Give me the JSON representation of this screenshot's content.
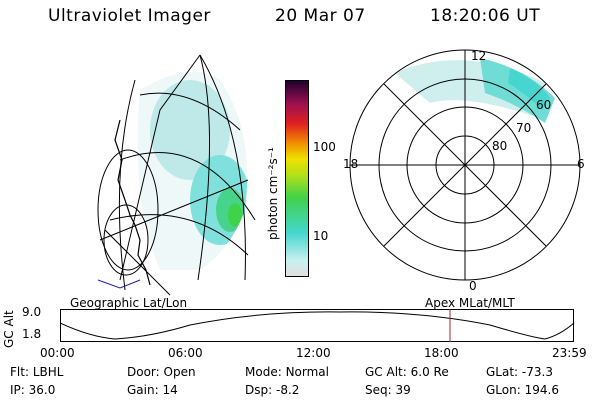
{
  "header": {
    "instrument": "Ultraviolet Imager",
    "date": "20 Mar 07",
    "time": "18:20:06 UT"
  },
  "colorbar": {
    "unit_label": "photon cm⁻²s⁻¹",
    "ticks": [
      "100",
      "10"
    ]
  },
  "polar": {
    "mlt_labels": {
      "top": "12",
      "left": "18",
      "right": "6",
      "bottom": "0"
    },
    "mlat_labels": [
      "60",
      "70",
      "80"
    ]
  },
  "map_labels": {
    "left": "Geographic Lat/Lon",
    "right": "Apex MLat/MLT"
  },
  "alt_plot": {
    "ylabel": "GC Alt",
    "y_max": "9.0",
    "y_min": "1.8",
    "time_ticks": [
      "00:00",
      "06:00",
      "12:00",
      "18:00",
      "23:59"
    ]
  },
  "footer": {
    "row1": [
      {
        "label": "Flt:",
        "value": "LBHL"
      },
      {
        "label": "Door:",
        "value": "Open"
      },
      {
        "label": "Mode:",
        "value": "Normal"
      },
      {
        "label": "GC Alt:",
        "value": "6.0 Re"
      },
      {
        "label": "GLat:",
        "value": "-73.3"
      }
    ],
    "row2": [
      {
        "label": "IP:",
        "value": "36.0"
      },
      {
        "label": "Gain:",
        "value": "14"
      },
      {
        "label": "Dsp:",
        "value": "-8.2"
      },
      {
        "label": "Seq:",
        "value": "39"
      },
      {
        "label": "GLon:",
        "value": "194.6"
      }
    ]
  },
  "colors": {
    "aurora_low": "#cfeeee",
    "aurora_mid": "#46d6cf",
    "aurora_high": "#3fd24a",
    "time_marker": "#b02020"
  }
}
